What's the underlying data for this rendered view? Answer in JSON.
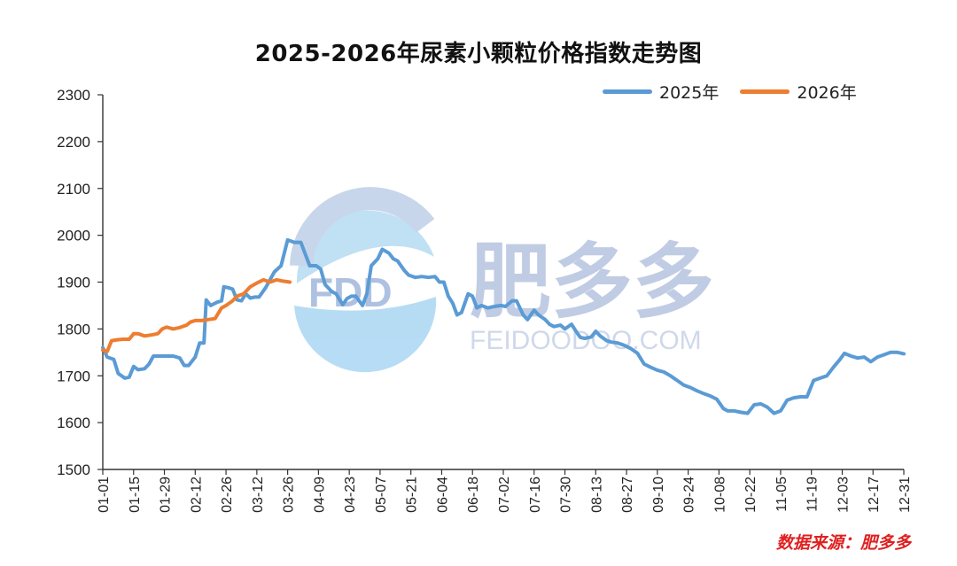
{
  "chart_data": {
    "type": "line",
    "title": "2025-2026年尿素小颗粒价格指数走势图",
    "source": "数据来源：肥多多",
    "watermark": {
      "brand": "肥多多",
      "logo_text": "FDD",
      "url": "FEIDOODOO.COM"
    },
    "ylim": [
      1500,
      2300
    ],
    "yticks": [
      1500,
      1600,
      1700,
      1800,
      1900,
      2000,
      2100,
      2200,
      2300
    ],
    "x_tick_labels": [
      "01-01",
      "01-15",
      "01-29",
      "02-12",
      "02-26",
      "03-12",
      "03-26",
      "04-09",
      "04-23",
      "05-07",
      "05-21",
      "06-04",
      "06-18",
      "07-02",
      "07-16",
      "07-30",
      "08-13",
      "08-27",
      "09-10",
      "09-24",
      "10-08",
      "10-22",
      "11-05",
      "11-19",
      "12-03",
      "12-17",
      "12-31"
    ],
    "legend_position": "top-right",
    "grid": false,
    "series": [
      {
        "name": "2025年",
        "color": "#5b9bd5",
        "points": [
          [
            "01-01",
            1760
          ],
          [
            "01-03",
            1740
          ],
          [
            "01-06",
            1735
          ],
          [
            "01-08",
            1705
          ],
          [
            "01-11",
            1695
          ],
          [
            "01-13",
            1697
          ],
          [
            "01-15",
            1720
          ],
          [
            "01-17",
            1713
          ],
          [
            "01-20",
            1715
          ],
          [
            "01-22",
            1725
          ],
          [
            "01-24",
            1742
          ],
          [
            "01-27",
            1742
          ],
          [
            "02-02",
            1742
          ],
          [
            "02-05",
            1738
          ],
          [
            "02-07",
            1722
          ],
          [
            "02-09",
            1722
          ],
          [
            "02-12",
            1740
          ],
          [
            "02-14",
            1770
          ],
          [
            "02-16",
            1770
          ],
          [
            "02-17",
            1862
          ],
          [
            "02-19",
            1850
          ],
          [
            "02-22",
            1857
          ],
          [
            "02-24",
            1860
          ],
          [
            "02-25",
            1890
          ],
          [
            "02-27",
            1888
          ],
          [
            "03-01",
            1885
          ],
          [
            "03-03",
            1862
          ],
          [
            "03-05",
            1860
          ],
          [
            "03-07",
            1875
          ],
          [
            "03-09",
            1866
          ],
          [
            "03-11",
            1868
          ],
          [
            "03-13",
            1868
          ],
          [
            "03-16",
            1888
          ],
          [
            "03-18",
            1905
          ],
          [
            "03-20",
            1922
          ],
          [
            "03-23",
            1935
          ],
          [
            "03-26",
            1990
          ],
          [
            "03-29",
            1985
          ],
          [
            "04-01",
            1985
          ],
          [
            "04-03",
            1960
          ],
          [
            "04-05",
            1935
          ],
          [
            "04-08",
            1935
          ],
          [
            "04-10",
            1928
          ],
          [
            "04-12",
            1895
          ],
          [
            "04-15",
            1880
          ],
          [
            "04-17",
            1875
          ],
          [
            "04-20",
            1852
          ],
          [
            "04-22",
            1865
          ],
          [
            "04-24",
            1870
          ],
          [
            "04-26",
            1870
          ],
          [
            "04-29",
            1850
          ],
          [
            "05-01",
            1875
          ],
          [
            "05-03",
            1935
          ],
          [
            "05-06",
            1950
          ],
          [
            "05-08",
            1970
          ],
          [
            "05-11",
            1962
          ],
          [
            "05-13",
            1950
          ],
          [
            "05-15",
            1945
          ],
          [
            "05-18",
            1925
          ],
          [
            "05-20",
            1915
          ],
          [
            "05-23",
            1910
          ],
          [
            "05-26",
            1912
          ],
          [
            "05-29",
            1910
          ],
          [
            "06-01",
            1912
          ],
          [
            "06-03",
            1900
          ],
          [
            "06-05",
            1900
          ],
          [
            "06-07",
            1870
          ],
          [
            "06-09",
            1855
          ],
          [
            "06-11",
            1830
          ],
          [
            "06-13",
            1835
          ],
          [
            "06-16",
            1875
          ],
          [
            "06-18",
            1870
          ],
          [
            "06-20",
            1845
          ],
          [
            "06-22",
            1850
          ],
          [
            "06-25",
            1845
          ],
          [
            "06-28",
            1848
          ],
          [
            "07-01",
            1850
          ],
          [
            "07-03",
            1848
          ],
          [
            "07-06",
            1860
          ],
          [
            "07-08",
            1860
          ],
          [
            "07-11",
            1830
          ],
          [
            "07-13",
            1820
          ],
          [
            "07-16",
            1840
          ],
          [
            "07-18",
            1830
          ],
          [
            "07-21",
            1820
          ],
          [
            "07-23",
            1810
          ],
          [
            "07-25",
            1805
          ],
          [
            "07-28",
            1808
          ],
          [
            "07-30",
            1800
          ],
          [
            "08-02",
            1810
          ],
          [
            "08-04",
            1795
          ],
          [
            "08-06",
            1782
          ],
          [
            "08-08",
            1780
          ],
          [
            "08-11",
            1783
          ],
          [
            "08-13",
            1795
          ],
          [
            "08-15",
            1785
          ],
          [
            "08-18",
            1775
          ],
          [
            "08-20",
            1772
          ],
          [
            "08-23",
            1770
          ],
          [
            "08-26",
            1765
          ],
          [
            "08-29",
            1758
          ],
          [
            "09-01",
            1748
          ],
          [
            "09-04",
            1725
          ],
          [
            "09-07",
            1718
          ],
          [
            "09-10",
            1712
          ],
          [
            "09-13",
            1708
          ],
          [
            "09-16",
            1700
          ],
          [
            "09-19",
            1690
          ],
          [
            "09-22",
            1680
          ],
          [
            "09-25",
            1675
          ],
          [
            "09-28",
            1668
          ],
          [
            "10-01",
            1662
          ],
          [
            "10-04",
            1657
          ],
          [
            "10-07",
            1650
          ],
          [
            "10-10",
            1630
          ],
          [
            "10-12",
            1625
          ],
          [
            "10-15",
            1625
          ],
          [
            "10-18",
            1622
          ],
          [
            "10-21",
            1620
          ],
          [
            "10-24",
            1638
          ],
          [
            "10-27",
            1640
          ],
          [
            "10-30",
            1633
          ],
          [
            "11-02",
            1620
          ],
          [
            "11-05",
            1625
          ],
          [
            "11-08",
            1648
          ],
          [
            "11-11",
            1653
          ],
          [
            "11-14",
            1655
          ],
          [
            "11-17",
            1655
          ],
          [
            "11-20",
            1690
          ],
          [
            "11-23",
            1695
          ],
          [
            "11-26",
            1700
          ],
          [
            "11-29",
            1718
          ],
          [
            "12-02",
            1735
          ],
          [
            "12-04",
            1748
          ],
          [
            "12-07",
            1742
          ],
          [
            "12-10",
            1738
          ],
          [
            "12-13",
            1740
          ],
          [
            "12-16",
            1730
          ],
          [
            "12-19",
            1740
          ],
          [
            "12-22",
            1745
          ],
          [
            "12-25",
            1750
          ],
          [
            "12-28",
            1750
          ],
          [
            "12-31",
            1747
          ]
        ]
      },
      {
        "name": "2026年",
        "color": "#ed7d31",
        "points": [
          [
            "01-01",
            1755
          ],
          [
            "01-03",
            1752
          ],
          [
            "01-05",
            1775
          ],
          [
            "01-08",
            1777
          ],
          [
            "01-10",
            1778
          ],
          [
            "01-13",
            1778
          ],
          [
            "01-15",
            1790
          ],
          [
            "01-17",
            1790
          ],
          [
            "01-20",
            1785
          ],
          [
            "01-23",
            1787
          ],
          [
            "01-26",
            1790
          ],
          [
            "01-28",
            1800
          ],
          [
            "01-30",
            1804
          ],
          [
            "02-02",
            1800
          ],
          [
            "02-05",
            1803
          ],
          [
            "02-08",
            1808
          ],
          [
            "02-10",
            1815
          ],
          [
            "02-12",
            1818
          ],
          [
            "02-15",
            1818
          ],
          [
            "02-18",
            1820
          ],
          [
            "02-21",
            1822
          ],
          [
            "02-24",
            1845
          ],
          [
            "02-26",
            1850
          ],
          [
            "03-01",
            1860
          ],
          [
            "03-03",
            1870
          ],
          [
            "03-06",
            1875
          ],
          [
            "03-09",
            1890
          ],
          [
            "03-12",
            1898
          ],
          [
            "03-15",
            1905
          ],
          [
            "03-18",
            1900
          ],
          [
            "03-21",
            1905
          ],
          [
            "03-24",
            1902
          ],
          [
            "03-27",
            1900
          ]
        ]
      }
    ]
  }
}
